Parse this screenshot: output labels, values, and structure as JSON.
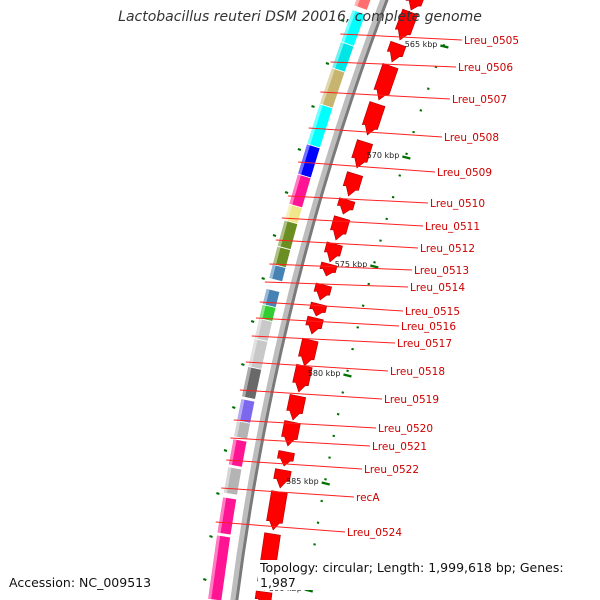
{
  "title": "Lactobacillus reuteri DSM 20016, complete genome",
  "footer": {
    "accession": "Accession: NC_009513",
    "topology": "Topology: circular; Length: 1,999,618 bp; Genes: 1,987"
  },
  "scale": {
    "ticks": [
      "565 kbp",
      "570 kbp",
      "575 kbp",
      "580 kbp",
      "585 kbp",
      "590 kbp"
    ]
  },
  "genes": [
    "Lreu_0505",
    "Lreu_0506",
    "Lreu_0507",
    "Lreu_0508",
    "Lreu_0509",
    "Lreu_0510",
    "Lreu_0511",
    "Lreu_0512",
    "Lreu_0513",
    "Lreu_0514",
    "Lreu_0515",
    "Lreu_0516",
    "Lreu_0517",
    "Lreu_0518",
    "Lreu_0519",
    "Lreu_0520",
    "Lreu_0521",
    "Lreu_0522",
    "recA",
    "Lreu_0524"
  ],
  "colors": {
    "gene_arrow": "#ff0000",
    "label": "#cc0000",
    "tick": "#007000",
    "backbone": "#888888",
    "cog": [
      "#ff6f6f",
      "#00ffff",
      "#00e5e5",
      "#c6b46f",
      "#00ffff",
      "#0000ff",
      "#ff1493",
      "#f0e68c",
      "#6b8e23",
      "#6b8e23",
      "#4682b4",
      "#4682b4",
      "#32cd32",
      "#c8c8c8",
      "#c8c8c8",
      "#696969",
      "#7b68ee",
      "#b4b4b4",
      "#ff1493",
      "#b4b4b4",
      "#ff1493",
      "#ff1493"
    ]
  }
}
